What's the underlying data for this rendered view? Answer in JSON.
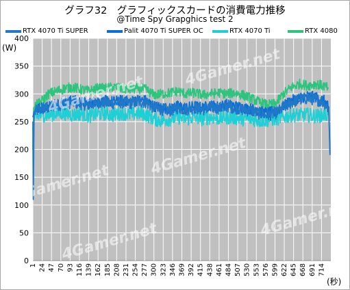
{
  "chart_data": {
    "type": "line",
    "title": "グラフ32　グラフィックスカードの消費電力推移",
    "subtitle": "@Time Spy Grapghics test 2",
    "ylabel": "(W)",
    "xlabel": "(秒)",
    "ylim": [
      0,
      400
    ],
    "yticks": [
      0,
      50,
      100,
      150,
      200,
      250,
      300,
      350,
      400
    ],
    "xlim": [
      1,
      737
    ],
    "xticks": [
      1,
      24,
      47,
      70,
      93,
      116,
      139,
      162,
      185,
      208,
      231,
      254,
      277,
      300,
      323,
      346,
      369,
      392,
      415,
      438,
      461,
      484,
      507,
      530,
      553,
      576,
      599,
      622,
      645,
      668,
      691,
      714
    ],
    "grid": true,
    "legend_position": "top",
    "plot_background": "#c0c0c0",
    "series": [
      {
        "name": "RTX 4070 Ti SUPER",
        "color": "#1f78c8",
        "points": [
          [
            1,
            250
          ],
          [
            2,
            110
          ],
          [
            4,
            265
          ],
          [
            10,
            270
          ],
          [
            20,
            272
          ],
          [
            40,
            275
          ],
          [
            60,
            280
          ],
          [
            80,
            282
          ],
          [
            100,
            285
          ],
          [
            120,
            282
          ],
          [
            140,
            280
          ],
          [
            160,
            285
          ],
          [
            180,
            284
          ],
          [
            200,
            283
          ],
          [
            220,
            285
          ],
          [
            240,
            283
          ],
          [
            260,
            286
          ],
          [
            280,
            285
          ],
          [
            300,
            275
          ],
          [
            320,
            272
          ],
          [
            340,
            270
          ],
          [
            360,
            275
          ],
          [
            380,
            272
          ],
          [
            400,
            275
          ],
          [
            420,
            272
          ],
          [
            440,
            276
          ],
          [
            460,
            274
          ],
          [
            480,
            278
          ],
          [
            500,
            275
          ],
          [
            520,
            272
          ],
          [
            540,
            270
          ],
          [
            560,
            265
          ],
          [
            580,
            262
          ],
          [
            600,
            265
          ],
          [
            620,
            275
          ],
          [
            640,
            285
          ],
          [
            660,
            290
          ],
          [
            680,
            292
          ],
          [
            700,
            290
          ],
          [
            720,
            285
          ],
          [
            732,
            272
          ],
          [
            735,
            190
          ]
        ]
      },
      {
        "name": "Palit 4070 Ti SUPER OC",
        "color": "#0a6ed8",
        "points": [
          [
            1,
            258
          ],
          [
            4,
            268
          ],
          [
            10,
            272
          ],
          [
            20,
            275
          ],
          [
            40,
            278
          ],
          [
            60,
            283
          ],
          [
            80,
            286
          ],
          [
            100,
            288
          ],
          [
            120,
            285
          ],
          [
            140,
            283
          ],
          [
            160,
            288
          ],
          [
            180,
            287
          ],
          [
            200,
            286
          ],
          [
            220,
            288
          ],
          [
            240,
            286
          ],
          [
            260,
            289
          ],
          [
            280,
            288
          ],
          [
            300,
            278
          ],
          [
            320,
            275
          ],
          [
            340,
            273
          ],
          [
            360,
            278
          ],
          [
            380,
            275
          ],
          [
            400,
            278
          ],
          [
            420,
            275
          ],
          [
            440,
            279
          ],
          [
            460,
            277
          ],
          [
            480,
            281
          ],
          [
            500,
            278
          ],
          [
            520,
            275
          ],
          [
            540,
            273
          ],
          [
            560,
            268
          ],
          [
            580,
            266
          ],
          [
            600,
            268
          ],
          [
            620,
            278
          ],
          [
            640,
            288
          ],
          [
            660,
            293
          ],
          [
            680,
            296
          ],
          [
            700,
            294
          ],
          [
            720,
            288
          ],
          [
            732,
            276
          ],
          [
            735,
            196
          ]
        ]
      },
      {
        "name": "RTX 4070 Ti",
        "color": "#1ecfd6",
        "points": [
          [
            1,
            235
          ],
          [
            3,
            255
          ],
          [
            10,
            258
          ],
          [
            20,
            262
          ],
          [
            40,
            262
          ],
          [
            60,
            265
          ],
          [
            80,
            265
          ],
          [
            100,
            262
          ],
          [
            120,
            265
          ],
          [
            140,
            260
          ],
          [
            160,
            264
          ],
          [
            180,
            265
          ],
          [
            200,
            262
          ],
          [
            220,
            266
          ],
          [
            240,
            263
          ],
          [
            260,
            265
          ],
          [
            280,
            263
          ],
          [
            300,
            255
          ],
          [
            320,
            252
          ],
          [
            340,
            255
          ],
          [
            360,
            258
          ],
          [
            380,
            255
          ],
          [
            400,
            258
          ],
          [
            420,
            255
          ],
          [
            440,
            258
          ],
          [
            460,
            256
          ],
          [
            480,
            258
          ],
          [
            500,
            257
          ],
          [
            520,
            255
          ],
          [
            540,
            255
          ],
          [
            560,
            252
          ],
          [
            580,
            253
          ],
          [
            600,
            255
          ],
          [
            620,
            258
          ],
          [
            640,
            262
          ],
          [
            660,
            262
          ],
          [
            680,
            262
          ],
          [
            700,
            260
          ],
          [
            720,
            262
          ],
          [
            732,
            263
          ]
        ]
      },
      {
        "name": "RTX 4080",
        "color": "#2ec47e",
        "points": [
          [
            1,
            200
          ],
          [
            3,
            275
          ],
          [
            10,
            280
          ],
          [
            20,
            285
          ],
          [
            40,
            300
          ],
          [
            60,
            305
          ],
          [
            80,
            310
          ],
          [
            100,
            312
          ],
          [
            120,
            308
          ],
          [
            140,
            305
          ],
          [
            160,
            310
          ],
          [
            180,
            310
          ],
          [
            200,
            312
          ],
          [
            220,
            310
          ],
          [
            240,
            308
          ],
          [
            260,
            310
          ],
          [
            280,
            308
          ],
          [
            300,
            298
          ],
          [
            320,
            300
          ],
          [
            340,
            302
          ],
          [
            360,
            305
          ],
          [
            380,
            300
          ],
          [
            400,
            302
          ],
          [
            420,
            298
          ],
          [
            440,
            300
          ],
          [
            460,
            302
          ],
          [
            480,
            300
          ],
          [
            500,
            302
          ],
          [
            520,
            298
          ],
          [
            540,
            292
          ],
          [
            560,
            285
          ],
          [
            580,
            280
          ],
          [
            600,
            282
          ],
          [
            620,
            300
          ],
          [
            640,
            312
          ],
          [
            660,
            318
          ],
          [
            680,
            315
          ],
          [
            700,
            318
          ],
          [
            720,
            314
          ],
          [
            732,
            310
          ]
        ]
      }
    ]
  }
}
